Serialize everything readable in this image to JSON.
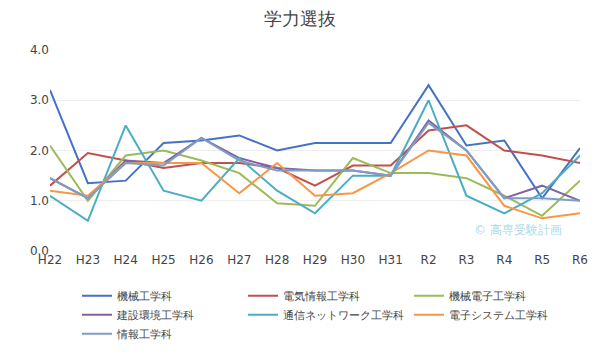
{
  "chart_data": {
    "type": "line",
    "title": "学力選抜",
    "categories": [
      "H22",
      "H23",
      "H24",
      "H25",
      "H26",
      "H27",
      "H28",
      "H29",
      "H30",
      "H31",
      "R2",
      "R3",
      "R4",
      "R5",
      "R6"
    ],
    "series": [
      {
        "name": "機械工学科",
        "color": "#4472C4",
        "values": [
          3.2,
          1.35,
          1.4,
          2.15,
          2.2,
          2.3,
          2.0,
          2.15,
          2.15,
          2.15,
          3.3,
          2.1,
          2.2,
          1.05,
          2.05
        ]
      },
      {
        "name": "電気情報工学科",
        "color": "#C0504D",
        "values": [
          1.3,
          1.95,
          1.8,
          1.65,
          1.75,
          1.75,
          1.65,
          1.3,
          1.7,
          1.7,
          2.4,
          2.5,
          2.0,
          1.9,
          1.75
        ]
      },
      {
        "name": "機械電子工学科",
        "color": "#9BBB59",
        "values": [
          2.1,
          1.0,
          1.9,
          2.0,
          1.8,
          1.55,
          0.95,
          0.9,
          1.85,
          1.55,
          1.55,
          1.45,
          1.1,
          0.7,
          1.4
        ]
      },
      {
        "name": "建設環境工学科",
        "color": "#8064A2",
        "values": [
          1.45,
          1.05,
          1.8,
          1.75,
          2.25,
          1.85,
          1.65,
          1.6,
          1.6,
          1.5,
          2.6,
          2.0,
          1.05,
          1.3,
          1.0
        ]
      },
      {
        "name": "通信ネットワーク工学科",
        "color": "#4BACC6",
        "values": [
          1.1,
          0.6,
          2.5,
          1.2,
          1.0,
          1.85,
          1.2,
          0.75,
          1.5,
          1.5,
          3.0,
          1.1,
          0.75,
          1.15,
          1.9
        ]
      },
      {
        "name": "電子システム工学科",
        "color": "#F79646",
        "values": [
          1.2,
          1.1,
          1.75,
          1.75,
          1.75,
          1.15,
          1.75,
          1.1,
          1.15,
          1.55,
          2.0,
          1.9,
          0.9,
          0.65,
          0.75
        ]
      },
      {
        "name": "情報工学科",
        "color": "#7F9EC5",
        "values": [
          1.45,
          1.05,
          1.75,
          1.7,
          2.25,
          1.8,
          1.6,
          1.6,
          1.6,
          1.5,
          2.55,
          2.0,
          1.05,
          1.05,
          1.0
        ]
      }
    ],
    "ylim": [
      0.0,
      4.0
    ],
    "yticks": [
      {
        "value": 0.0,
        "label": "0.0"
      },
      {
        "value": 1.0,
        "label": "1.0"
      },
      {
        "value": 2.0,
        "label": "2.0"
      },
      {
        "value": 3.0,
        "label": "3.0"
      },
      {
        "value": 4.0,
        "label": "4.0"
      }
    ],
    "grid": true,
    "legend": "bottom",
    "annotations": [
      {
        "text": "© 高専受験計画",
        "color": "#ADD8E6"
      }
    ]
  }
}
